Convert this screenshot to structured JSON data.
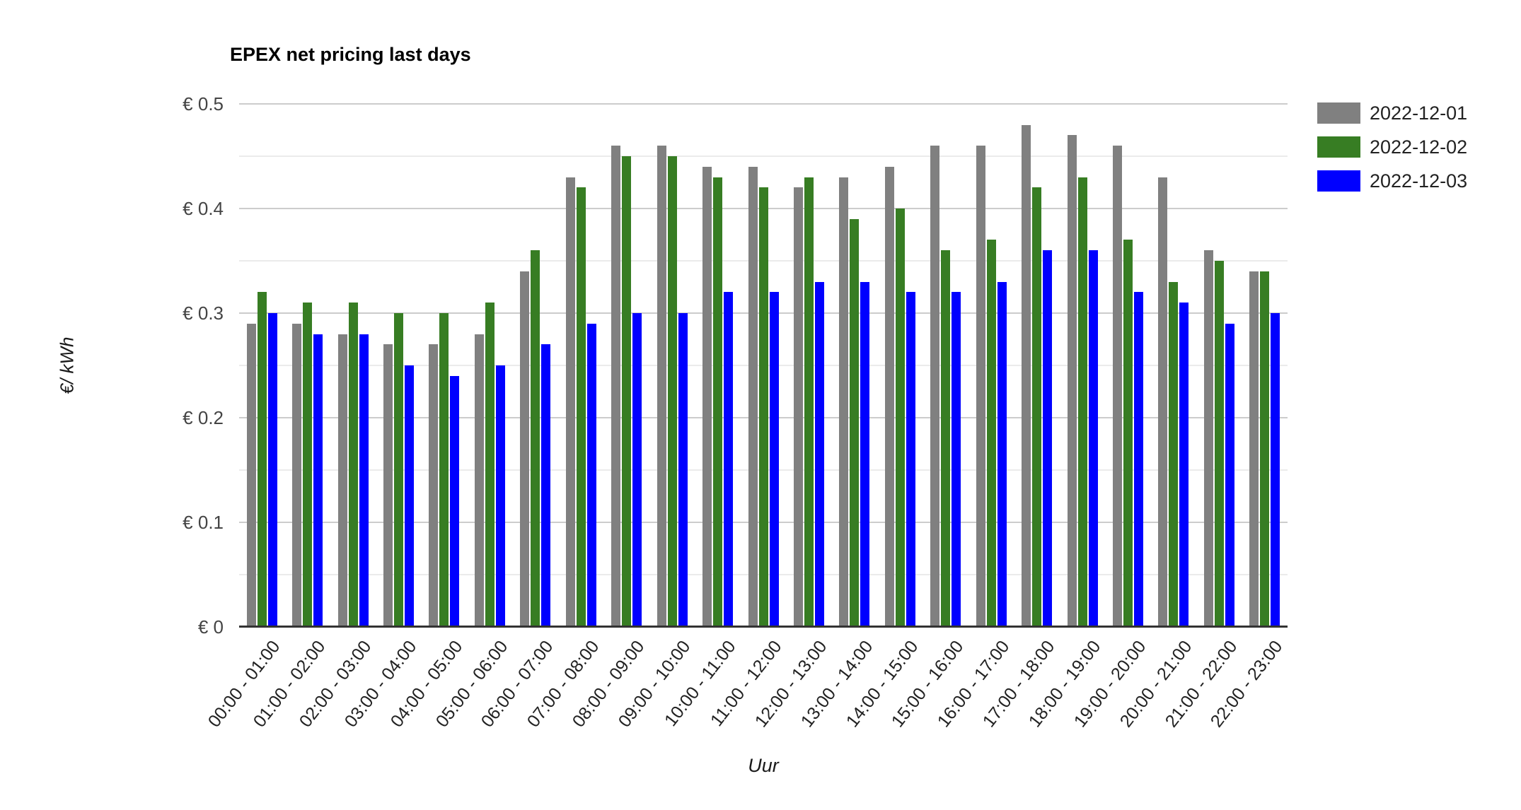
{
  "chart_data": {
    "type": "bar",
    "title": "EPEX net pricing last days",
    "xlabel": "Uur",
    "ylabel": "€/ kWh",
    "ylim": [
      0,
      0.5
    ],
    "grid": true,
    "minor_gridlines": true,
    "legend_position": "top-right",
    "y_major_ticks": [
      0,
      0.1,
      0.2,
      0.3,
      0.4,
      0.5
    ],
    "y_tick_labels": [
      "€ 0",
      "€ 0.1",
      "€ 0.2",
      "€ 0.3",
      "€ 0.4",
      "€ 0.5"
    ],
    "categories": [
      "00:00 - 01:00",
      "01:00 - 02:00",
      "02:00 - 03:00",
      "03:00 - 04:00",
      "04:00 - 05:00",
      "05:00 - 06:00",
      "06:00 - 07:00",
      "07:00 - 08:00",
      "08:00 - 09:00",
      "09:00 - 10:00",
      "10:00 - 11:00",
      "11:00 - 12:00",
      "12:00 - 13:00",
      "13:00 - 14:00",
      "14:00 - 15:00",
      "15:00 - 16:00",
      "16:00 - 17:00",
      "17:00 - 18:00",
      "18:00 - 19:00",
      "19:00 - 20:00",
      "20:00 - 21:00",
      "21:00 - 22:00",
      "22:00 - 23:00"
    ],
    "series": [
      {
        "name": "2022-12-01",
        "color": "#808080",
        "values": [
          0.29,
          0.29,
          0.28,
          0.27,
          0.27,
          0.28,
          0.34,
          0.43,
          0.46,
          0.46,
          0.44,
          0.44,
          0.42,
          0.43,
          0.44,
          0.46,
          0.46,
          0.48,
          0.47,
          0.46,
          0.43,
          0.36,
          0.34
        ]
      },
      {
        "name": "2022-12-02",
        "color": "#377d23",
        "values": [
          0.32,
          0.31,
          0.31,
          0.3,
          0.3,
          0.31,
          0.36,
          0.42,
          0.45,
          0.45,
          0.43,
          0.42,
          0.43,
          0.39,
          0.4,
          0.36,
          0.37,
          0.42,
          0.43,
          0.37,
          0.33,
          0.35,
          0.34
        ]
      },
      {
        "name": "2022-12-03",
        "color": "#0000ff",
        "values": [
          0.3,
          0.28,
          0.28,
          0.25,
          0.24,
          0.25,
          0.27,
          0.29,
          0.3,
          0.3,
          0.32,
          0.32,
          0.33,
          0.33,
          0.32,
          0.32,
          0.33,
          0.36,
          0.36,
          0.32,
          0.31,
          0.29,
          0.3
        ]
      }
    ]
  }
}
